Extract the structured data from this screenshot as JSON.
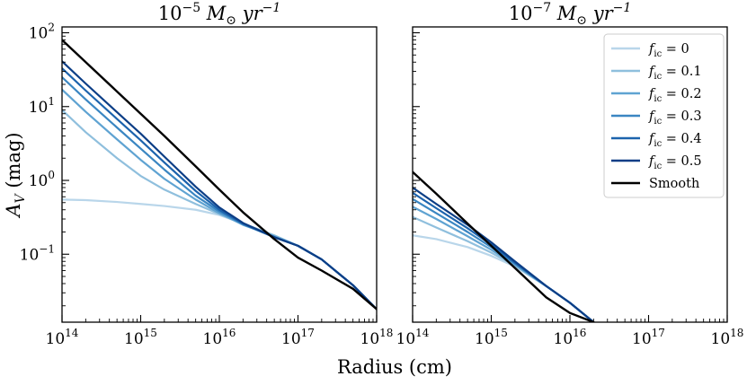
{
  "figure_title_note": "",
  "legend": {
    "entries": [
      "fic = 0",
      "fic = 0.1",
      "fic = 0.2",
      "fic = 0.3",
      "fic = 0.4",
      "fic = 0.5",
      "Smooth"
    ],
    "colors": [
      "#b9d6ea",
      "#8fbfdd",
      "#5fa3d2",
      "#3a86c2",
      "#1c63ad",
      "#0c3e86",
      "#000000"
    ]
  },
  "chart_data": [
    {
      "type": "line",
      "title": "10^-5 M☉ yr^-1",
      "title_parts": {
        "base": "10",
        "exp": "−5",
        "rest": " M",
        "sun": "⊙",
        "rate": " yr",
        "rate_exp": "−1"
      },
      "xlabel": "Radius (cm)",
      "ylabel": "A_V (mag)",
      "ylabel_parts": {
        "main": "A",
        "sub": "V",
        "rest": " (mag)"
      },
      "x_scale": "log",
      "y_scale": "log",
      "xlim": [
        100000000000000.0,
        1e+18
      ],
      "ylim": [
        0.012,
        120
      ],
      "x_ticks": [
        {
          "value": 100000000000000.0,
          "base": "10",
          "exp": "14"
        },
        {
          "value": 1000000000000000.0,
          "base": "10",
          "exp": "15"
        },
        {
          "value": 1e+16,
          "base": "10",
          "exp": "16"
        },
        {
          "value": 1e+17,
          "base": "10",
          "exp": "17"
        },
        {
          "value": 1e+18,
          "base": "10",
          "exp": "18"
        }
      ],
      "y_ticks": [
        {
          "value": 100,
          "base": "10",
          "exp": "2"
        },
        {
          "value": 10,
          "base": "10",
          "exp": "1"
        },
        {
          "value": 1,
          "base": "10",
          "exp": "0"
        },
        {
          "value": 0.1,
          "base": "10",
          "exp": "−1"
        }
      ],
      "x": [
        100000000000000.0,
        200000000000000.0,
        500000000000000.0,
        1000000000000000.0,
        2000000000000000.0,
        5000000000000000.0,
        1e+16,
        2e+16,
        5e+16,
        1e+17,
        2e+17,
        5e+17,
        1e+18
      ],
      "series": [
        {
          "name": "fic = 0",
          "values": [
            0.55,
            0.54,
            0.51,
            0.48,
            0.45,
            0.4,
            0.34,
            0.26,
            0.18,
            0.13,
            0.085,
            0.038,
            0.018
          ]
        },
        {
          "name": "fic = 0.1",
          "values": [
            9.0,
            4.5,
            2.0,
            1.15,
            0.75,
            0.48,
            0.35,
            0.26,
            0.18,
            0.13,
            0.085,
            0.038,
            0.018
          ]
        },
        {
          "name": "fic = 0.2",
          "values": [
            17.0,
            8.5,
            3.6,
            1.9,
            1.05,
            0.55,
            0.36,
            0.25,
            0.175,
            0.13,
            0.085,
            0.038,
            0.018
          ]
        },
        {
          "name": "fic = 0.3",
          "values": [
            25.0,
            12.5,
            5.2,
            2.7,
            1.4,
            0.62,
            0.38,
            0.255,
            0.17,
            0.13,
            0.085,
            0.038,
            0.018
          ]
        },
        {
          "name": "fic = 0.4",
          "values": [
            33.0,
            16.5,
            6.8,
            3.5,
            1.75,
            0.72,
            0.4,
            0.26,
            0.17,
            0.13,
            0.085,
            0.038,
            0.018
          ]
        },
        {
          "name": "fic = 0.5",
          "values": [
            41.0,
            20.5,
            8.4,
            4.3,
            2.1,
            0.82,
            0.43,
            0.265,
            0.17,
            0.13,
            0.085,
            0.038,
            0.018
          ]
        },
        {
          "name": "Smooth",
          "values": [
            80.0,
            40.0,
            16.0,
            8.0,
            4.0,
            1.55,
            0.75,
            0.37,
            0.16,
            0.09,
            0.06,
            0.034,
            0.018
          ]
        }
      ]
    },
    {
      "type": "line",
      "title": "10^-7 M☉ yr^-1",
      "title_parts": {
        "base": "10",
        "exp": "−7",
        "rest": " M",
        "sun": "⊙",
        "rate": " yr",
        "rate_exp": "−1"
      },
      "xlabel": "Radius (cm)",
      "x_scale": "log",
      "y_scale": "log",
      "xlim": [
        100000000000000.0,
        1e+18
      ],
      "ylim": [
        0.012,
        120
      ],
      "x_ticks": [
        {
          "value": 100000000000000.0,
          "base": "10",
          "exp": "14"
        },
        {
          "value": 1000000000000000.0,
          "base": "10",
          "exp": "15"
        },
        {
          "value": 1e+16,
          "base": "10",
          "exp": "16"
        },
        {
          "value": 1e+17,
          "base": "10",
          "exp": "17"
        },
        {
          "value": 1e+18,
          "base": "10",
          "exp": "18"
        }
      ],
      "y_ticks": [],
      "x": [
        100000000000000.0,
        200000000000000.0,
        500000000000000.0,
        1000000000000000.0,
        2000000000000000.0,
        5000000000000000.0,
        1e+16,
        2e+16
      ],
      "series": [
        {
          "name": "fic = 0",
          "values": [
            0.18,
            0.16,
            0.125,
            0.095,
            0.068,
            0.037,
            0.022,
            0.012
          ]
        },
        {
          "name": "fic = 0.1",
          "values": [
            0.32,
            0.23,
            0.15,
            0.105,
            0.07,
            0.037,
            0.022,
            0.012
          ]
        },
        {
          "name": "fic = 0.2",
          "values": [
            0.44,
            0.3,
            0.175,
            0.115,
            0.072,
            0.037,
            0.022,
            0.012
          ]
        },
        {
          "name": "fic = 0.3",
          "values": [
            0.56,
            0.36,
            0.2,
            0.125,
            0.075,
            0.037,
            0.022,
            0.012
          ]
        },
        {
          "name": "fic = 0.4",
          "values": [
            0.68,
            0.42,
            0.225,
            0.135,
            0.077,
            0.037,
            0.022,
            0.012
          ]
        },
        {
          "name": "fic = 0.5",
          "values": [
            0.8,
            0.48,
            0.25,
            0.145,
            0.08,
            0.037,
            0.022,
            0.012
          ]
        },
        {
          "name": "Smooth",
          "values": [
            1.3,
            0.66,
            0.26,
            0.13,
            0.065,
            0.026,
            0.016,
            0.012
          ]
        }
      ]
    }
  ]
}
